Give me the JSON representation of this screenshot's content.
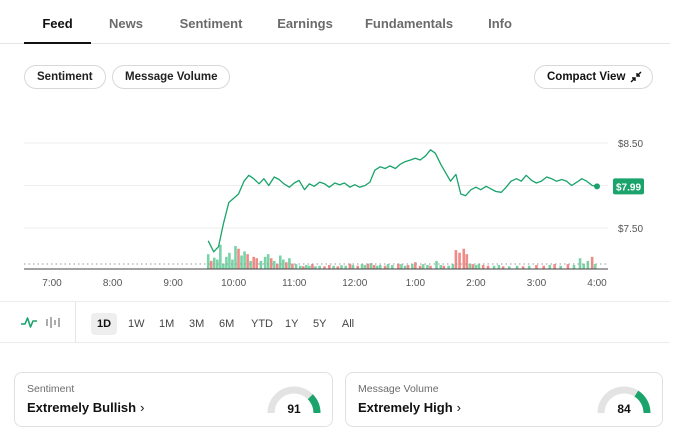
{
  "tabs": [
    {
      "label": "Feed",
      "active": true
    },
    {
      "label": "News",
      "active": false
    },
    {
      "label": "Sentiment",
      "active": false
    },
    {
      "label": "Earnings",
      "active": false
    },
    {
      "label": "Fundamentals",
      "active": false
    },
    {
      "label": "Info",
      "active": false
    }
  ],
  "toolbar": {
    "sentiment_label": "Sentiment",
    "message_volume_label": "Message Volume",
    "compact_view_label": "Compact View"
  },
  "chart_data": {
    "type": "line",
    "x_ticks": [
      "7:00",
      "8:00",
      "9:00",
      "10:00",
      "11:00",
      "12:00",
      "1:00",
      "2:00",
      "3:00",
      "4:00"
    ],
    "y_ticks": [
      "$8.50",
      "$7.50"
    ],
    "current_price": "$7.99",
    "colors": {
      "line": "#1aa36b",
      "badge": "#1aa36b",
      "volume_up": "#79d3a6",
      "volume_down": "#f08a87"
    },
    "price_series": [
      [
        9.58,
        7.35
      ],
      [
        9.67,
        7.22
      ],
      [
        9.75,
        7.28
      ],
      [
        9.83,
        7.55
      ],
      [
        9.92,
        7.8
      ],
      [
        10.0,
        7.85
      ],
      [
        10.08,
        7.9
      ],
      [
        10.17,
        8.05
      ],
      [
        10.25,
        8.12
      ],
      [
        10.33,
        8.08
      ],
      [
        10.42,
        8.02
      ],
      [
        10.5,
        8.08
      ],
      [
        10.58,
        8.0
      ],
      [
        10.67,
        8.1
      ],
      [
        10.75,
        8.07
      ],
      [
        10.83,
        8.02
      ],
      [
        10.92,
        7.98
      ],
      [
        11.0,
        8.03
      ],
      [
        11.08,
        8.06
      ],
      [
        11.17,
        7.95
      ],
      [
        11.25,
        8.02
      ],
      [
        11.33,
        7.99
      ],
      [
        11.42,
        8.04
      ],
      [
        11.5,
        8.02
      ],
      [
        11.58,
        7.98
      ],
      [
        11.67,
        8.03
      ],
      [
        11.75,
        8.01
      ],
      [
        11.83,
        8.03
      ],
      [
        11.92,
        7.98
      ],
      [
        12.0,
        8.01
      ],
      [
        12.08,
        7.98
      ],
      [
        12.17,
        8.0
      ],
      [
        12.25,
        8.04
      ],
      [
        12.33,
        8.18
      ],
      [
        12.42,
        8.22
      ],
      [
        12.5,
        8.2
      ],
      [
        12.58,
        8.23
      ],
      [
        12.67,
        8.2
      ],
      [
        12.75,
        8.25
      ],
      [
        12.83,
        8.28
      ],
      [
        12.92,
        8.3
      ],
      [
        13.0,
        8.32
      ],
      [
        13.08,
        8.3
      ],
      [
        13.17,
        8.35
      ],
      [
        13.25,
        8.42
      ],
      [
        13.33,
        8.38
      ],
      [
        13.42,
        8.25
      ],
      [
        13.5,
        8.15
      ],
      [
        13.58,
        8.05
      ],
      [
        13.67,
        8.13
      ],
      [
        13.75,
        7.9
      ],
      [
        13.83,
        7.88
      ],
      [
        13.92,
        7.95
      ],
      [
        14.0,
        7.98
      ],
      [
        14.08,
        7.95
      ],
      [
        14.17,
        7.99
      ],
      [
        14.25,
        7.96
      ],
      [
        14.33,
        7.93
      ],
      [
        14.42,
        7.92
      ],
      [
        14.5,
        7.98
      ],
      [
        14.58,
        8.05
      ],
      [
        14.67,
        8.08
      ],
      [
        14.75,
        8.05
      ],
      [
        14.83,
        8.12
      ],
      [
        14.92,
        8.06
      ],
      [
        15.0,
        8.03
      ],
      [
        15.08,
        8.05
      ],
      [
        15.17,
        8.1
      ],
      [
        15.25,
        8.08
      ],
      [
        15.33,
        8.05
      ],
      [
        15.42,
        8.07
      ],
      [
        15.5,
        8.05
      ],
      [
        15.58,
        8.0
      ],
      [
        15.67,
        8.04
      ],
      [
        15.75,
        8.08
      ],
      [
        15.83,
        8.05
      ],
      [
        15.92,
        8.0
      ],
      [
        16.0,
        7.99
      ]
    ],
    "volume_bars": [
      [
        9.58,
        0.55,
        "up"
      ],
      [
        9.63,
        0.3,
        "down"
      ],
      [
        9.68,
        0.42,
        "up"
      ],
      [
        9.73,
        0.35,
        "up"
      ],
      [
        9.78,
        0.9,
        "up"
      ],
      [
        9.83,
        0.2,
        "up"
      ],
      [
        9.88,
        0.45,
        "up"
      ],
      [
        9.93,
        0.6,
        "up"
      ],
      [
        9.98,
        0.35,
        "up"
      ],
      [
        10.03,
        0.85,
        "up"
      ],
      [
        10.08,
        0.75,
        "down"
      ],
      [
        10.13,
        0.5,
        "up"
      ],
      [
        10.18,
        0.65,
        "up"
      ],
      [
        10.23,
        0.55,
        "down"
      ],
      [
        10.28,
        0.3,
        "up"
      ],
      [
        10.33,
        0.45,
        "down"
      ],
      [
        10.38,
        0.4,
        "down"
      ],
      [
        10.45,
        0.3,
        "up"
      ],
      [
        10.52,
        0.45,
        "up"
      ],
      [
        10.57,
        0.55,
        "up"
      ],
      [
        10.62,
        0.4,
        "down"
      ],
      [
        10.67,
        0.3,
        "up"
      ],
      [
        10.72,
        0.2,
        "down"
      ],
      [
        10.77,
        0.5,
        "up"
      ],
      [
        10.82,
        0.35,
        "up"
      ],
      [
        10.87,
        0.25,
        "down"
      ],
      [
        10.92,
        0.4,
        "up"
      ],
      [
        10.97,
        0.2,
        "down"
      ],
      [
        11.03,
        0.18,
        "up"
      ],
      [
        11.1,
        0.12,
        "up"
      ],
      [
        11.15,
        0.1,
        "down"
      ],
      [
        11.2,
        0.15,
        "up"
      ],
      [
        11.25,
        0.12,
        "up"
      ],
      [
        11.3,
        0.18,
        "down"
      ],
      [
        11.35,
        0.1,
        "up"
      ],
      [
        11.42,
        0.12,
        "up"
      ],
      [
        11.5,
        0.1,
        "down"
      ],
      [
        11.58,
        0.15,
        "down"
      ],
      [
        11.65,
        0.12,
        "up"
      ],
      [
        11.72,
        0.1,
        "down"
      ],
      [
        11.78,
        0.14,
        "up"
      ],
      [
        11.85,
        0.12,
        "up"
      ],
      [
        11.92,
        0.2,
        "down"
      ],
      [
        11.97,
        0.15,
        "up"
      ],
      [
        12.05,
        0.12,
        "down"
      ],
      [
        12.12,
        0.18,
        "up"
      ],
      [
        12.17,
        0.15,
        "up"
      ],
      [
        12.22,
        0.2,
        "down"
      ],
      [
        12.27,
        0.22,
        "up"
      ],
      [
        12.32,
        0.15,
        "down"
      ],
      [
        12.37,
        0.12,
        "up"
      ],
      [
        12.42,
        0.15,
        "up"
      ],
      [
        12.5,
        0.12,
        "down"
      ],
      [
        12.55,
        0.18,
        "up"
      ],
      [
        12.62,
        0.15,
        "up"
      ],
      [
        12.72,
        0.2,
        "down"
      ],
      [
        12.77,
        0.18,
        "up"
      ],
      [
        12.83,
        0.12,
        "up"
      ],
      [
        12.88,
        0.15,
        "down"
      ],
      [
        12.95,
        0.18,
        "up"
      ],
      [
        13.0,
        0.25,
        "down"
      ],
      [
        13.08,
        0.12,
        "down"
      ],
      [
        13.13,
        0.18,
        "up"
      ],
      [
        13.2,
        0.15,
        "up"
      ],
      [
        13.25,
        0.12,
        "down"
      ],
      [
        13.35,
        0.3,
        "up"
      ],
      [
        13.42,
        0.15,
        "up"
      ],
      [
        13.47,
        0.12,
        "down"
      ],
      [
        13.55,
        0.12,
        "up"
      ],
      [
        13.62,
        0.18,
        "up"
      ],
      [
        13.67,
        0.7,
        "down"
      ],
      [
        13.73,
        0.6,
        "down"
      ],
      [
        13.8,
        0.75,
        "down"
      ],
      [
        13.85,
        0.55,
        "down"
      ],
      [
        13.9,
        0.2,
        "up"
      ],
      [
        13.95,
        0.18,
        "down"
      ],
      [
        14.0,
        0.15,
        "up"
      ],
      [
        14.05,
        0.2,
        "up"
      ],
      [
        14.12,
        0.15,
        "down"
      ],
      [
        14.2,
        0.12,
        "down"
      ],
      [
        14.3,
        0.12,
        "up"
      ],
      [
        14.38,
        0.15,
        "up"
      ],
      [
        14.45,
        0.1,
        "down"
      ],
      [
        14.55,
        0.1,
        "up"
      ],
      [
        14.68,
        0.12,
        "up"
      ],
      [
        14.78,
        0.1,
        "down"
      ],
      [
        14.88,
        0.12,
        "up"
      ],
      [
        15.0,
        0.15,
        "down"
      ],
      [
        15.12,
        0.12,
        "down"
      ],
      [
        15.22,
        0.15,
        "up"
      ],
      [
        15.3,
        0.18,
        "down"
      ],
      [
        15.4,
        0.12,
        "up"
      ],
      [
        15.52,
        0.18,
        "down"
      ],
      [
        15.62,
        0.15,
        "up"
      ],
      [
        15.72,
        0.4,
        "up"
      ],
      [
        15.78,
        0.2,
        "up"
      ],
      [
        15.85,
        0.3,
        "up"
      ],
      [
        15.92,
        0.45,
        "down"
      ],
      [
        15.97,
        0.18,
        "up"
      ]
    ]
  },
  "ranges": [
    {
      "label": "1D",
      "active": true
    },
    {
      "label": "1W",
      "active": false
    },
    {
      "label": "1M",
      "active": false
    },
    {
      "label": "3M",
      "active": false
    },
    {
      "label": "6M",
      "active": false
    },
    {
      "label": "YTD",
      "active": false
    },
    {
      "label": "1Y",
      "active": false
    },
    {
      "label": "5Y",
      "active": false
    },
    {
      "label": "All",
      "active": false
    }
  ],
  "sentiment_card": {
    "title": "Sentiment",
    "value": "Extremely Bullish",
    "score": 91
  },
  "volume_card": {
    "title": "Message Volume",
    "value": "Extremely High",
    "score": 84
  },
  "colors": {
    "accent": "#1aa36b",
    "gauge_track": "#e3e3e3"
  }
}
